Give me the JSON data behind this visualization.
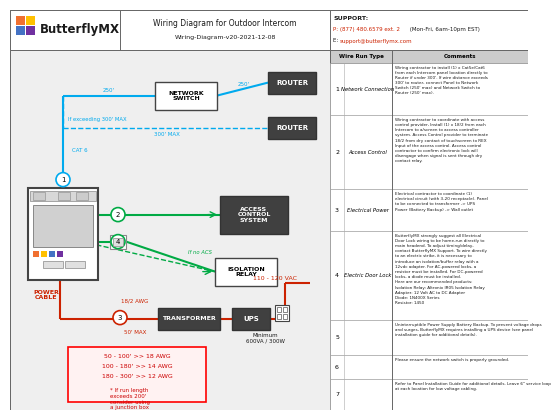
{
  "title": "Wiring Diagram for Outdoor Intercom",
  "subtitle": "Wiring-Diagram-v20-2021-12-08",
  "logo_text": "ButterflyMX",
  "support_label": "SUPPORT:",
  "support_phone": "P: (877) 480.6579 ext. 2",
  "support_phone_hours": "(Mon-Fri, 6am-10pm EST)",
  "support_email_prefix": "E: ",
  "support_email": "support@butterflymx.com",
  "bg_color": "#ffffff",
  "diagram_bg": "#f0f0f0",
  "cyan": "#00aaee",
  "green": "#00aa44",
  "red": "#cc2200",
  "dark": "#404040",
  "logo_orange": "#f07030",
  "logo_yellow": "#ffc000",
  "logo_blue": "#4472c4",
  "logo_purple": "#7030a0",
  "logo_green": "#70ad47",
  "logo_red": "#ff0000",
  "wire_run_header": "Wire Run Type",
  "comments_header": "Comments",
  "row_labels": [
    "Network Connection",
    "Access Control",
    "Electrical Power",
    "Electric Door Lock",
    "",
    "",
    ""
  ],
  "row_comments": [
    "Wiring contractor to install (1) x Cat5e/Cat6\nfrom each Intercom panel location directly to\nRouter if under 300'. If wire distance exceeds\n300' to router, connect Panel to Network\nSwitch (250' max) and Network Switch to\nRouter (250' max).",
    "Wiring contractor to coordinate with access\ncontrol provider, Install (1) x 18/2 from each\nIntercom to a/screen to access controller\nsystem. Access Control provider to terminate\n18/2 from dry contact of touchscreen to REX\nInput of the access control. Access control\ncontractor to confirm electronic lock will\ndisengage when signal is sent through dry\ncontact relay.",
    "Electrical contractor to coordinate (1)\nelectrical circuit (with 3-20 receptacle). Panel\nto be connected to transformer -> UPS\nPower (Battery Backup) -> Wall outlet",
    "ButterflyMX strongly suggest all Electrical\nDoor Lock wiring to be home-run directly to\nmain headend. To adjust timing/delay,\ncontact ButterflyMX Support. To wire directly\nto an electric strike, it is necessary to\nintroduce an isolation/buffer relay with a\n12vdc adapter. For AC-powered locks, a\nresistor must be installed. For DC-powered\nlocks, a diode must be installed.\nHere are our recommended products:\nIsolation Relay: Altronix IR05 Isolation Relay\nAdapter: 12 Volt AC to DC Adapter\nDiode: 1N400X Series\nResistor: 1450",
    "Uninterruptible Power Supply Battery Backup. To prevent voltage drops\nand surges, ButterflyMX requires installing a UPS device (see panel\ninstallation guide for additional details).",
    "Please ensure the network switch is properly grounded.",
    "Refer to Panel Installation Guide for additional details. Leave 6\" service loop\nat each location for low voltage cabling."
  ],
  "row_numbers": [
    "1",
    "2",
    "3",
    "4",
    "5",
    "6",
    "7"
  ]
}
